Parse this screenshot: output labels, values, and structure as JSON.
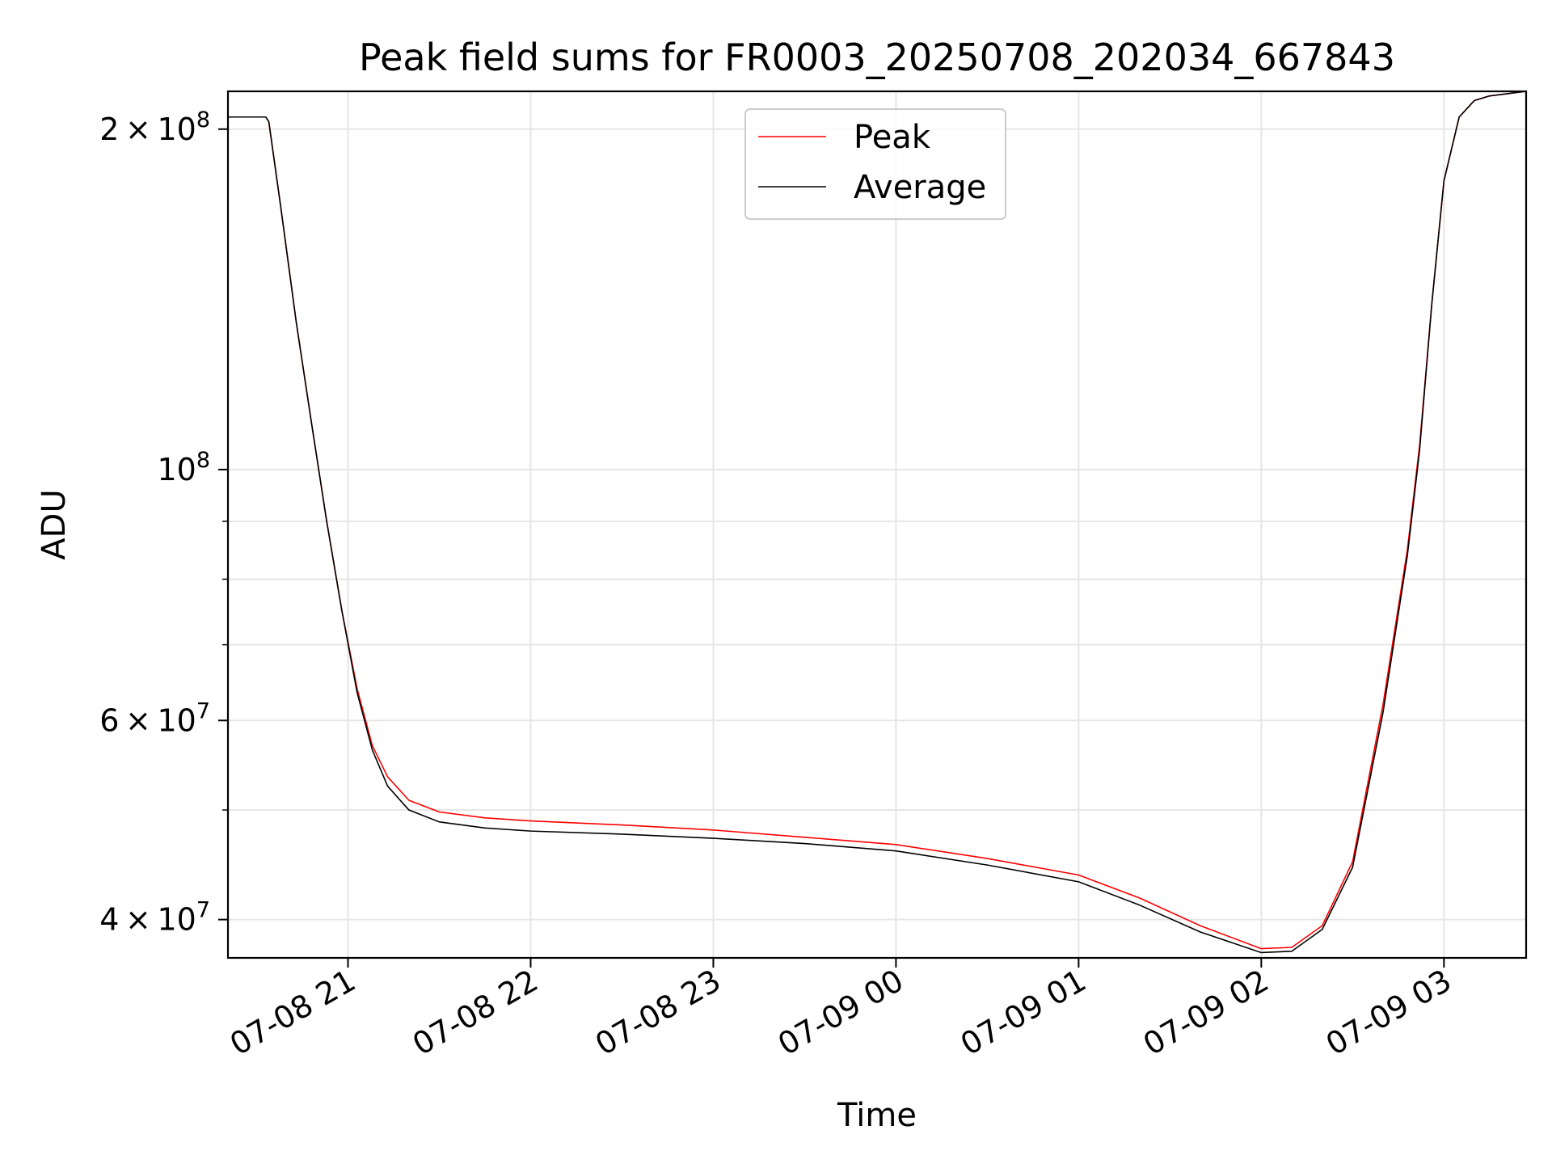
{
  "chart_data": {
    "type": "line",
    "title": "Peak field sums for FR0003_20250708_202034_667843",
    "xlabel": "Time",
    "ylabel": "ADU",
    "yscale": "log",
    "grid": true,
    "legend_position": "top-center",
    "xlim": [
      "2025-07-08 20:20:34",
      "2025-07-09 03:27:00"
    ],
    "ylim": [
      37000000,
      216000000
    ],
    "x_ticks": [
      {
        "at": "2025-07-08 21:00",
        "label": "07-08 21"
      },
      {
        "at": "2025-07-08 22:00",
        "label": "07-08 22"
      },
      {
        "at": "2025-07-08 23:00",
        "label": "07-08 23"
      },
      {
        "at": "2025-07-09 00:00",
        "label": "07-09 00"
      },
      {
        "at": "2025-07-09 01:00",
        "label": "07-09 01"
      },
      {
        "at": "2025-07-09 02:00",
        "label": "07-09 02"
      },
      {
        "at": "2025-07-09 03:00",
        "label": "07-09 03"
      }
    ],
    "y_ticks": [
      {
        "value": 40000000,
        "mantissa": "4",
        "exponent": "7"
      },
      {
        "value": 60000000,
        "mantissa": "6",
        "exponent": "7"
      },
      {
        "value": 100000000,
        "mantissa": "",
        "exponent": "8"
      },
      {
        "value": 200000000,
        "mantissa": "2",
        "exponent": "8"
      }
    ],
    "y_minor_ticks": [
      50000000,
      70000000,
      80000000,
      90000000
    ],
    "series": [
      {
        "name": "Peak",
        "color": "#ff0000",
        "x": [
          "2025-07-08 20:20:34",
          "2025-07-08 20:33",
          "2025-07-08 20:34",
          "2025-07-08 20:38",
          "2025-07-08 20:43",
          "2025-07-08 20:48",
          "2025-07-08 20:53",
          "2025-07-08 20:58",
          "2025-07-08 21:03",
          "2025-07-08 21:08",
          "2025-07-08 21:13",
          "2025-07-08 21:20",
          "2025-07-08 21:30",
          "2025-07-08 21:45",
          "2025-07-08 22:00",
          "2025-07-08 22:30",
          "2025-07-08 23:00",
          "2025-07-08 23:30",
          "2025-07-09 00:00",
          "2025-07-09 00:30",
          "2025-07-09 01:00",
          "2025-07-09 01:20",
          "2025-07-09 01:40",
          "2025-07-09 02:00",
          "2025-07-09 02:10",
          "2025-07-09 02:20",
          "2025-07-09 02:30",
          "2025-07-09 02:40",
          "2025-07-09 02:48",
          "2025-07-09 02:52",
          "2025-07-09 02:56",
          "2025-07-09 03:00",
          "2025-07-09 03:05",
          "2025-07-09 03:10",
          "2025-07-09 03:15",
          "2025-07-09 03:27"
        ],
        "y": [
          205000000,
          205000000,
          203000000,
          170000000,
          135000000,
          110000000,
          90000000,
          75000000,
          64000000,
          57000000,
          53500000,
          51000000,
          49800000,
          49200000,
          48900000,
          48500000,
          48000000,
          47300000,
          46600000,
          45300000,
          43800000,
          41800000,
          39500000,
          37700000,
          37800000,
          39500000,
          45000000,
          62000000,
          85000000,
          105000000,
          140000000,
          180000000,
          205000000,
          212000000,
          214000000,
          216000000
        ]
      },
      {
        "name": "Average",
        "color": "#000000",
        "x": [
          "2025-07-08 20:20:34",
          "2025-07-08 20:33",
          "2025-07-08 20:34",
          "2025-07-08 20:38",
          "2025-07-08 20:43",
          "2025-07-08 20:48",
          "2025-07-08 20:53",
          "2025-07-08 20:58",
          "2025-07-08 21:03",
          "2025-07-08 21:08",
          "2025-07-08 21:13",
          "2025-07-08 21:20",
          "2025-07-08 21:30",
          "2025-07-08 21:45",
          "2025-07-08 22:00",
          "2025-07-08 22:30",
          "2025-07-08 23:00",
          "2025-07-08 23:30",
          "2025-07-09 00:00",
          "2025-07-09 00:30",
          "2025-07-09 01:00",
          "2025-07-09 01:20",
          "2025-07-09 01:40",
          "2025-07-09 02:00",
          "2025-07-09 02:10",
          "2025-07-09 02:20",
          "2025-07-09 02:30",
          "2025-07-09 02:40",
          "2025-07-09 02:48",
          "2025-07-09 02:52",
          "2025-07-09 02:56",
          "2025-07-09 03:00",
          "2025-07-09 03:05",
          "2025-07-09 03:10",
          "2025-07-09 03:15",
          "2025-07-09 03:27"
        ],
        "y": [
          205000000,
          205000000,
          203000000,
          170000000,
          135000000,
          110000000,
          90000000,
          75000000,
          63500000,
          56500000,
          52500000,
          50000000,
          48800000,
          48200000,
          47900000,
          47600000,
          47200000,
          46700000,
          46000000,
          44700000,
          43200000,
          41200000,
          39000000,
          37400000,
          37500000,
          39200000,
          44500000,
          61000000,
          84000000,
          104000000,
          140000000,
          180000000,
          205000000,
          212000000,
          214000000,
          216000000
        ]
      }
    ]
  }
}
